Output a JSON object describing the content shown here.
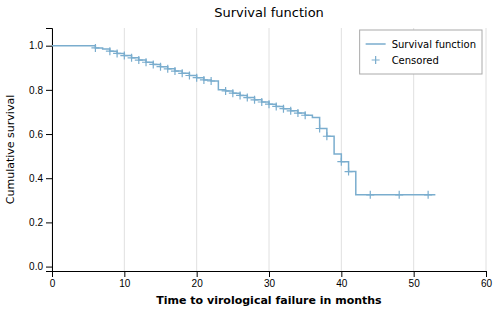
{
  "chart_data": {
    "type": "line",
    "title": "Survival function",
    "xlabel": "Time to virological failure in months",
    "ylabel": "Cumulative survival",
    "xlim": [
      0,
      60
    ],
    "ylim": [
      -0.02,
      1.08
    ],
    "xticks": [
      0,
      10,
      20,
      30,
      40,
      50,
      60
    ],
    "yticks": [
      {
        "value": 0.0,
        "label": "0.0"
      },
      0.2,
      0.4,
      0.6,
      0.8,
      {
        "value": 1.0,
        "label": "1.0"
      }
    ],
    "grid": "x",
    "legend": "upper right",
    "series": [
      {
        "name": "Survival function",
        "type": "line",
        "color": "#7aadce",
        "x": [
          0,
          6,
          6,
          7,
          7,
          8,
          8,
          9,
          9,
          10,
          10,
          11,
          11,
          12,
          12,
          13,
          13,
          14,
          14,
          15,
          15,
          16,
          16,
          17,
          17,
          18,
          18,
          19,
          19,
          20,
          20,
          21,
          21,
          22,
          22,
          23,
          23,
          24,
          24,
          25,
          25,
          26,
          26,
          27,
          27,
          28,
          28,
          29,
          29,
          30,
          30,
          31,
          31,
          32,
          32,
          33,
          33,
          34,
          34,
          35,
          35,
          36,
          36,
          37,
          37,
          38,
          38,
          39,
          39,
          40,
          40,
          41,
          41,
          42,
          42,
          53
        ],
        "values": [
          1.0,
          1.0,
          0.99,
          0.99,
          0.985,
          0.985,
          0.975,
          0.975,
          0.965,
          0.965,
          0.955,
          0.955,
          0.945,
          0.945,
          0.935,
          0.935,
          0.925,
          0.925,
          0.915,
          0.915,
          0.905,
          0.905,
          0.895,
          0.895,
          0.885,
          0.885,
          0.875,
          0.875,
          0.865,
          0.865,
          0.855,
          0.855,
          0.845,
          0.845,
          0.84,
          0.84,
          0.8,
          0.8,
          0.795,
          0.795,
          0.785,
          0.785,
          0.775,
          0.775,
          0.765,
          0.765,
          0.755,
          0.755,
          0.745,
          0.745,
          0.735,
          0.735,
          0.725,
          0.725,
          0.715,
          0.715,
          0.705,
          0.705,
          0.695,
          0.695,
          0.685,
          0.685,
          0.675,
          0.675,
          0.625,
          0.625,
          0.59,
          0.59,
          0.51,
          0.51,
          0.475,
          0.475,
          0.43,
          0.43,
          0.325,
          0.325
        ]
      },
      {
        "name": "Censored",
        "type": "scatter",
        "marker": "+",
        "color": "#7aadce",
        "x": [
          6,
          8,
          9,
          10,
          11,
          12,
          13,
          14,
          15,
          16,
          17,
          18,
          19,
          20,
          21,
          22,
          24,
          25,
          26,
          27,
          28,
          29,
          30,
          31,
          32,
          33,
          34,
          35,
          37,
          38,
          40,
          41,
          44,
          48,
          52
        ],
        "values": [
          0.99,
          0.975,
          0.965,
          0.955,
          0.945,
          0.935,
          0.925,
          0.915,
          0.905,
          0.895,
          0.885,
          0.875,
          0.865,
          0.855,
          0.845,
          0.84,
          0.795,
          0.785,
          0.775,
          0.765,
          0.755,
          0.745,
          0.735,
          0.725,
          0.715,
          0.705,
          0.695,
          0.685,
          0.625,
          0.59,
          0.475,
          0.43,
          0.325,
          0.325,
          0.325
        ]
      }
    ]
  }
}
